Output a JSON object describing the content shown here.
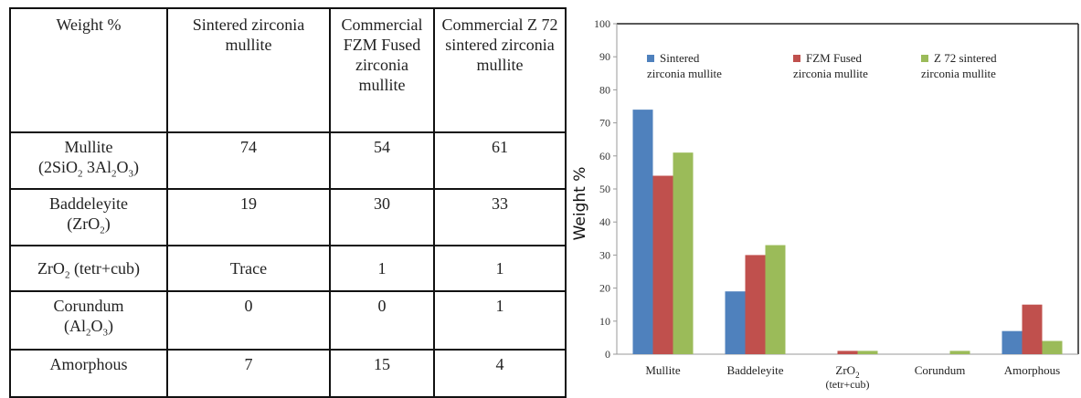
{
  "table": {
    "headers": [
      "Weight %",
      "Sintered zirconia mullite",
      "Commercial FZM Fused zirconia mullite",
      "Commercial Z 72 sintered zirconia mullite"
    ],
    "rows": [
      {
        "phase": "Mullite",
        "formula_parts": [
          "(2SiO",
          "2",
          " 3Al",
          "2",
          "O",
          "3",
          ")"
        ],
        "values": [
          "74",
          "54",
          "61"
        ]
      },
      {
        "phase": "Baddeleyite",
        "formula_parts": [
          "(ZrO",
          "2",
          ")"
        ],
        "values": [
          "19",
          "30",
          "33"
        ]
      },
      {
        "phase_parts": [
          "ZrO",
          "2",
          " (tetr+cub)"
        ],
        "values": [
          "Trace",
          "1",
          "1"
        ]
      },
      {
        "phase": "Corundum",
        "formula_parts": [
          "(Al",
          "2",
          "O",
          "3",
          ")"
        ],
        "values": [
          "0",
          "0",
          "1"
        ]
      },
      {
        "phase": "Amorphous",
        "values": [
          "7",
          "15",
          "4"
        ]
      }
    ]
  },
  "chart_data": {
    "type": "bar",
    "categories": [
      "Mullite",
      "Baddeleyite",
      "ZrO2 (tetr+cub)",
      "Corundum",
      "Amorphous"
    ],
    "category_label_parts": [
      [
        "Mullite"
      ],
      [
        "Baddeleyite"
      ],
      [
        "ZrO",
        "2",
        "(tetr+cub)"
      ],
      [
        "Corundum"
      ],
      [
        "Amorphous"
      ]
    ],
    "series": [
      {
        "name": "Sintered zirconia mullite",
        "legend_lines": [
          "Sintered",
          "zirconia mullite"
        ],
        "color": "#4f81bd",
        "values": [
          74,
          19,
          0,
          0,
          7
        ]
      },
      {
        "name": "FZM Fused zirconia mullite",
        "legend_lines": [
          "FZM Fused",
          "zirconia  mullite"
        ],
        "color": "#c0504d",
        "values": [
          54,
          30,
          1,
          0,
          15
        ]
      },
      {
        "name": "Z 72 sintered zirconia mullite",
        "legend_lines": [
          "Z 72   sintered",
          "zirconia mullite"
        ],
        "color": "#9bbb59",
        "values": [
          61,
          33,
          1,
          1,
          4
        ]
      }
    ],
    "ylabel": "Weight %",
    "ylim": [
      0,
      100
    ],
    "yticks": [
      0,
      10,
      20,
      30,
      40,
      50,
      60,
      70,
      80,
      90,
      100
    ],
    "legend_position": "top",
    "grid": false
  }
}
